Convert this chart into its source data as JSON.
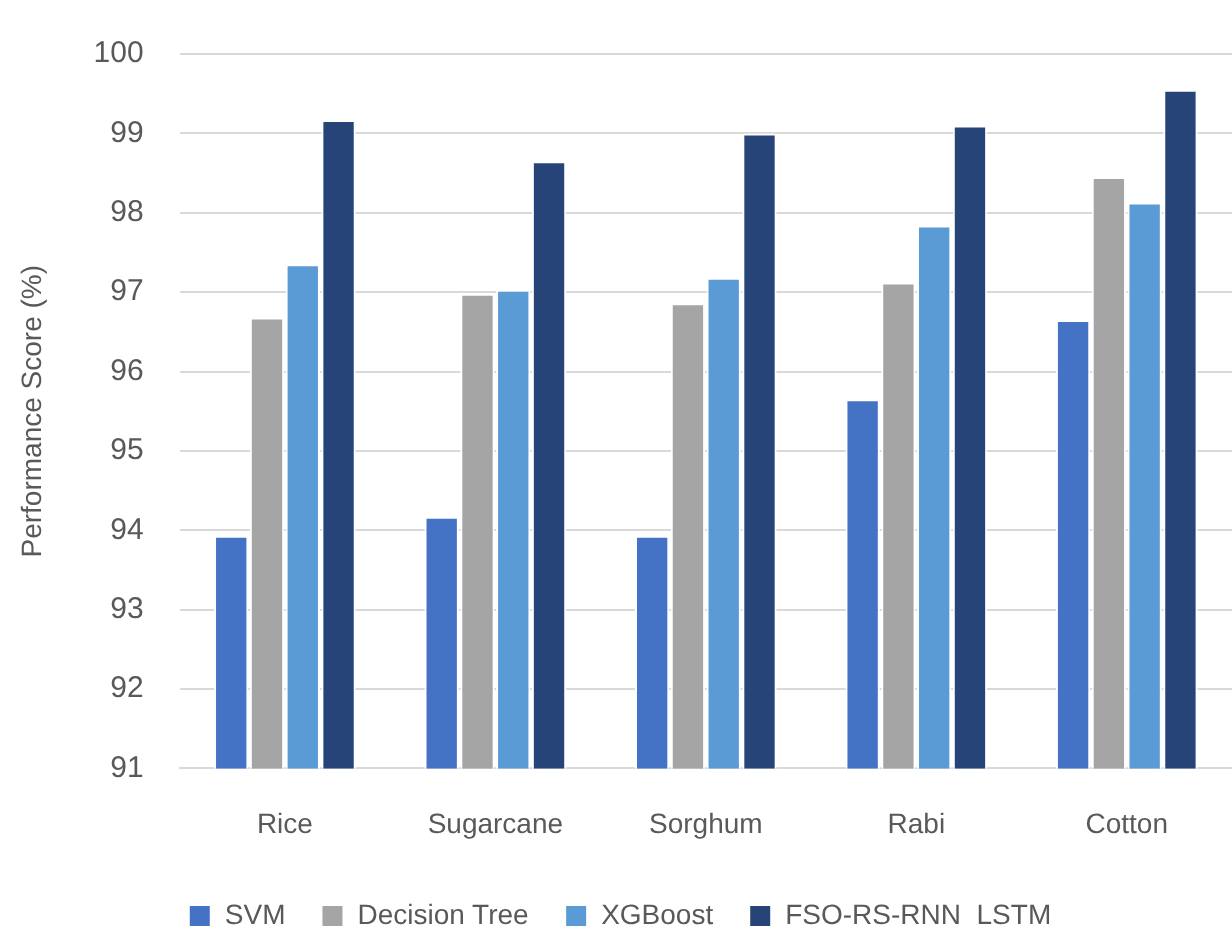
{
  "chart_data": {
    "type": "bar",
    "ylabel": "Performance Score (%)",
    "categories": [
      "Rice",
      "Sugarcane",
      "Sorghum",
      "Rabi",
      "Cotton"
    ],
    "series": [
      {
        "name": "SVM",
        "color": "#4472c4",
        "values": [
          93.93,
          94.17,
          93.93,
          95.65,
          96.65
        ]
      },
      {
        "name": "Decision Tree",
        "color": "#a5a5a5",
        "values": [
          96.68,
          96.98,
          96.86,
          97.12,
          98.45
        ]
      },
      {
        "name": "XGBoost",
        "color": "#5b9bd5",
        "values": [
          97.35,
          97.03,
          97.18,
          97.84,
          98.13
        ]
      },
      {
        "name": "FSO-RS-RNN  LSTM",
        "color": "#264478",
        "values": [
          99.17,
          98.65,
          99.0,
          99.1,
          99.55
        ]
      }
    ],
    "ylim": [
      91,
      100
    ],
    "yticks": [
      91,
      92,
      93,
      94,
      95,
      96,
      97,
      98,
      99,
      100
    ],
    "grid": "y",
    "legend": "bottom"
  }
}
